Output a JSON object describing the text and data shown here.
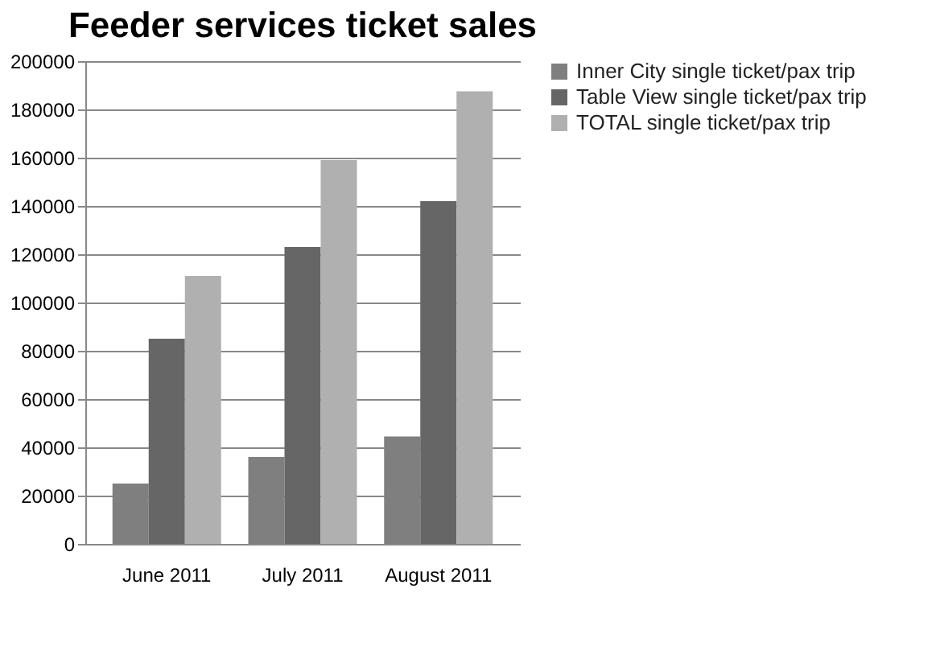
{
  "chart_data": {
    "type": "bar",
    "title": "Feeder services ticket sales",
    "categories": [
      "June 2011",
      "July 2011",
      "August 2011"
    ],
    "series": [
      {
        "name": "Inner City  single ticket/pax trip",
        "color": "#7f7f7f",
        "values": [
          25000,
          36000,
          44500
        ]
      },
      {
        "name": "Table View single ticket/pax trip",
        "color": "#666666",
        "values": [
          85000,
          123000,
          142000
        ]
      },
      {
        "name": "TOTAL single ticket/pax trip",
        "color": "#b0b0b0",
        "values": [
          111000,
          159000,
          187500
        ]
      }
    ],
    "ylim": [
      0,
      200000
    ],
    "yticks": [
      0,
      20000,
      40000,
      60000,
      80000,
      100000,
      120000,
      140000,
      160000,
      180000,
      200000
    ],
    "grid": "y",
    "legend": "right"
  }
}
